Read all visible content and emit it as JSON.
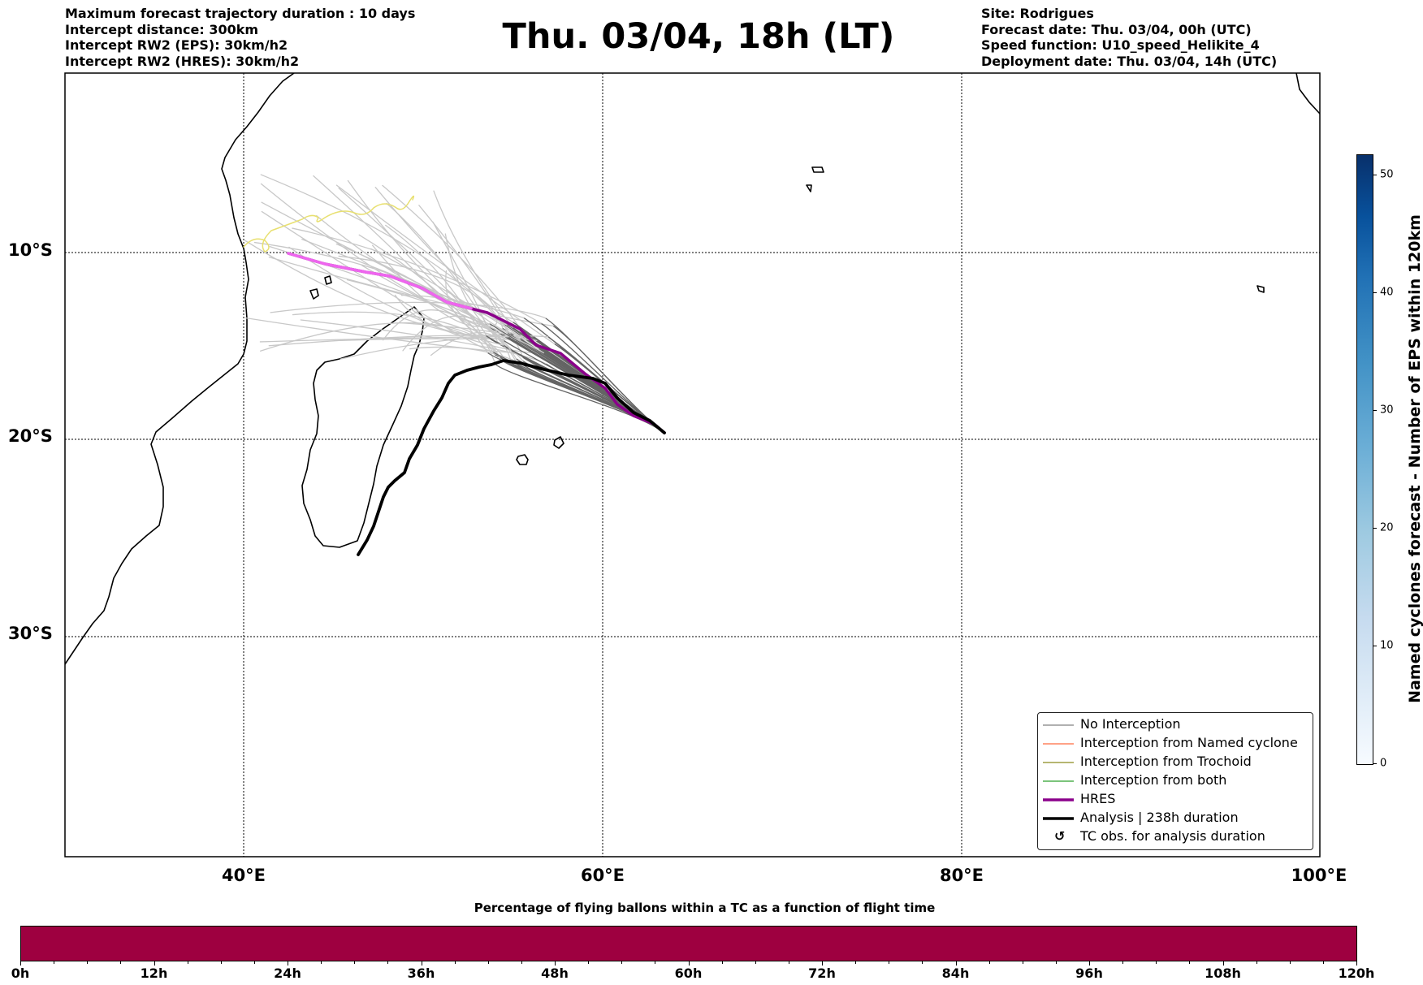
{
  "header": {
    "left_lines": [
      "Maximum forecast trajectory duration : 10 days",
      "Intercept distance: 300km",
      "Intercept RW2 (EPS):  30km/h2",
      "Intercept RW2 (HRES): 30km/h2"
    ],
    "title": "Thu. 03/04, 18h (LT)",
    "right_lines": [
      "Site: Rodrigues",
      "Forecast date: Thu. 03/04, 00h (UTC)",
      "Speed function: U10_speed_Helikite_4",
      "Deployment date: Thu. 03/04, 14h (UTC)"
    ]
  },
  "map": {
    "lat_labels": [
      "10°S",
      "20°S",
      "30°S"
    ],
    "lon_labels": [
      "40°E",
      "60°E",
      "80°E",
      "100°E"
    ]
  },
  "legend": {
    "items": [
      {
        "label": "No Interception",
        "color": "#808080"
      },
      {
        "label": "Interception from Named cyclone",
        "color": "#ff6a3d"
      },
      {
        "label": "Interception from Trochoid",
        "color": "#8b8b1f"
      },
      {
        "label": "Interception from both",
        "color": "#2ca02c"
      },
      {
        "label": "HRES",
        "color": "#8b008b"
      },
      {
        "label": "Analysis | 238h duration",
        "color": "#000000"
      },
      {
        "label": "TC obs. for analysis duration",
        "icon": "cyclone-icon",
        "symbol": "↺"
      }
    ]
  },
  "colorbar": {
    "label": "Named cyclones forecast - Number of EPS within 120km",
    "ticks": [
      "0",
      "10",
      "20",
      "30",
      "40",
      "50"
    ],
    "colormap": "Blues"
  },
  "time_bar": {
    "title": "Percentage of flying ballons within a TC as a function of flight time",
    "ticks": [
      "0h",
      "12h",
      "24h",
      "36h",
      "48h",
      "60h",
      "72h",
      "84h",
      "96h",
      "108h",
      "120h"
    ],
    "fill_color": "#9e0040"
  },
  "colors": {
    "hres_early": "#ee66ee",
    "ensemble_near": "#c8c8c8",
    "ensemble_far": "#646464",
    "early_loop": "#e8e070"
  }
}
